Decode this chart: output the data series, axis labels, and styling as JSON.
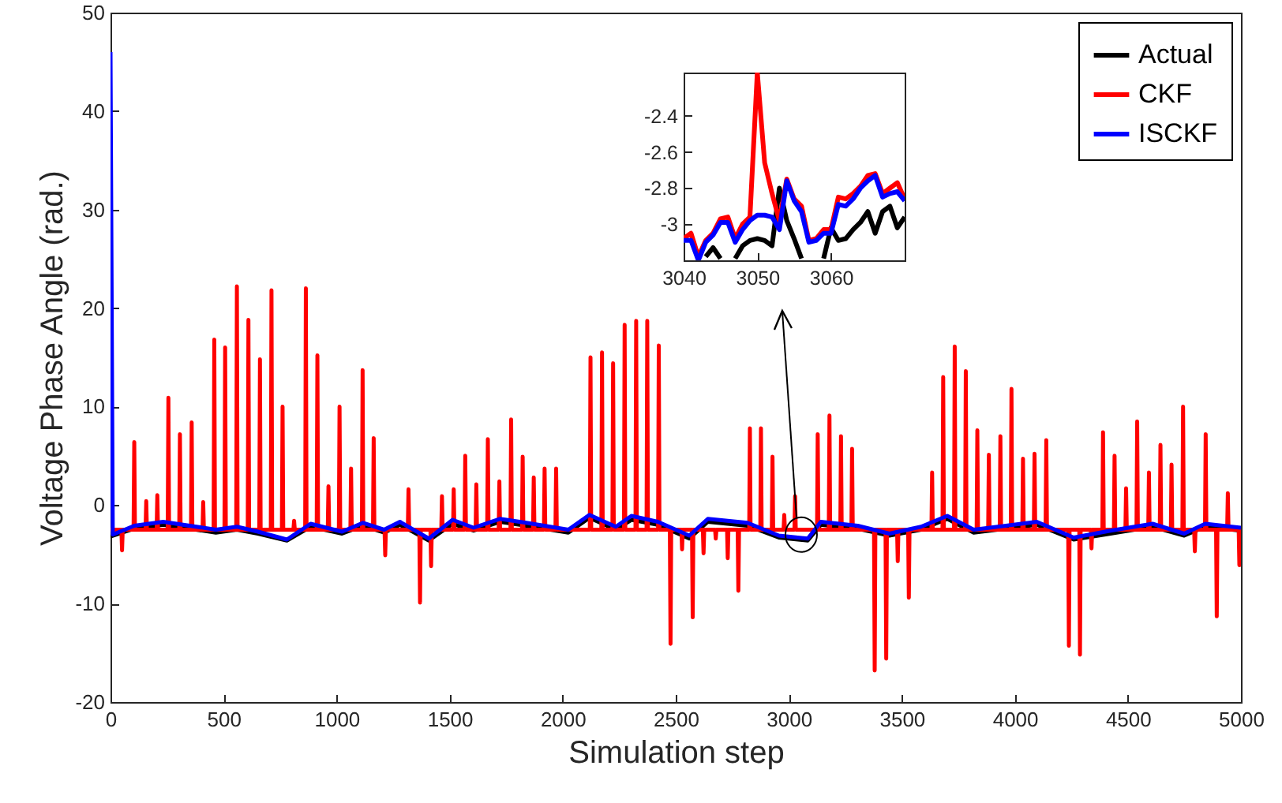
{
  "chart_data": [
    {
      "type": "line",
      "xlabel": "Simulation step",
      "ylabel": "Voltage Phase Angle (rad.)",
      "xlim": [
        0,
        5000
      ],
      "xticks": [
        0,
        500,
        1000,
        1500,
        2000,
        2500,
        3000,
        3500,
        4000,
        4500,
        5000
      ],
      "ylim": [
        -20,
        50
      ],
      "yticks": [
        -20,
        -10,
        0,
        10,
        20,
        30,
        40,
        50
      ],
      "grid": false,
      "legend": "top right",
      "series": [
        {
          "name": "Actual",
          "color": "#000000",
          "x": [
            0,
            105,
            233,
            466,
            559,
            652,
            780,
            885,
            1024,
            1117,
            1210,
            1280,
            1408,
            1513,
            1606,
            1722,
            1839,
            2025,
            2118,
            2235,
            2304,
            2421,
            2560,
            2642,
            2817,
            2956,
            3084,
            3142,
            3305,
            3445,
            3585,
            3701,
            3818,
            4097,
            4260,
            4423,
            4609,
            4749,
            4842,
            5000
          ],
          "values": [
            -3.2,
            -2.4,
            -2.0,
            -2.8,
            -2.5,
            -2.9,
            -3.6,
            -2.2,
            -2.9,
            -2.1,
            -2.8,
            -2.0,
            -3.6,
            -1.9,
            -2.6,
            -1.7,
            -2.1,
            -2.8,
            -1.3,
            -2.5,
            -1.5,
            -2.0,
            -3.4,
            -1.7,
            -2.1,
            -3.3,
            -3.6,
            -2.0,
            -2.4,
            -3.1,
            -2.5,
            -1.4,
            -2.8,
            -2.0,
            -3.5,
            -2.9,
            -2.2,
            -3.1,
            -2.2,
            -2.6
          ]
        },
        {
          "name": "CKF",
          "color": "#ff0000",
          "x": [
            0,
            48,
            51,
            54,
            102,
            105,
            108,
            155,
            158,
            161,
            204,
            207,
            210,
            253,
            256,
            259,
            304,
            307,
            310,
            356,
            359,
            362,
            407,
            410,
            413,
            456,
            459,
            462,
            504,
            507,
            510,
            556,
            559,
            562,
            607,
            610,
            613,
            658,
            661,
            664,
            709,
            712,
            715,
            758,
            761,
            764,
            809,
            812,
            815,
            861,
            864,
            867,
            912,
            915,
            918,
            961,
            964,
            967,
            1010,
            1013,
            1016,
            1061,
            1064,
            1067,
            1112,
            1115,
            1118,
            1161,
            1164,
            1167,
            1212,
            1215,
            1218,
            1315,
            1318,
            1321,
            1366,
            1369,
            1372,
            1415,
            1418,
            1421,
            1463,
            1466,
            1469,
            1515,
            1518,
            1521,
            1566,
            1569,
            1572,
            1615,
            1618,
            1621,
            1666,
            1669,
            1672,
            1717,
            1720,
            1723,
            1769,
            1772,
            1775,
            1820,
            1823,
            1826,
            1869,
            1872,
            1875,
            1917,
            1920,
            1923,
            1968,
            1971,
            1974,
            2120,
            2123,
            2126,
            2171,
            2174,
            2177,
            2220,
            2223,
            2226,
            2271,
            2274,
            2277,
            2322,
            2325,
            2328,
            2371,
            2374,
            2377,
            2422,
            2425,
            2428,
            2474,
            2477,
            2480,
            2525,
            2528,
            2531,
            2572,
            2575,
            2578,
            2620,
            2623,
            2626,
            2674,
            2677,
            2680,
            2727,
            2730,
            2733,
            2774,
            2777,
            2780,
            2825,
            2828,
            2831,
            2874,
            2877,
            2880,
            2925,
            2928,
            2931,
            2977,
            2980,
            2983,
            3025,
            3028,
            3031,
            3125,
            3128,
            3131,
            3177,
            3180,
            3183,
            3228,
            3231,
            3234,
            3277,
            3280,
            3283,
            3377,
            3380,
            3383,
            3428,
            3431,
            3434,
            3479,
            3482,
            3485,
            3528,
            3531,
            3534,
            3631,
            3634,
            3637,
            3680,
            3683,
            3686,
            3731,
            3734,
            3737,
            3780,
            3783,
            3786,
            3831,
            3834,
            3837,
            3882,
            3885,
            3888,
            3933,
            3936,
            3939,
            3982,
            3985,
            3988,
            4033,
            4036,
            4039,
            4084,
            4087,
            4090,
            4136,
            4139,
            4142,
            4236,
            4239,
            4242,
            4285,
            4288,
            4291,
            4336,
            4339,
            4342,
            4387,
            4390,
            4393,
            4438,
            4441,
            4444,
            4489,
            4492,
            4495,
            4538,
            4541,
            4544,
            4590,
            4593,
            4596,
            4641,
            4644,
            4647,
            4690,
            4693,
            4696,
            4741,
            4744,
            4747,
            4793,
            4796,
            4799,
            4841,
            4844,
            4847,
            4890,
            4893,
            4896,
            4939,
            4942,
            4945,
            4990,
            4993,
            4996,
            5000
          ],
          "values": [
            -2.5,
            -2.5,
            -4.6,
            -2.5,
            -2.5,
            6.4,
            -2.5,
            -2.5,
            0.4,
            -2.5,
            -2.5,
            1.0,
            -2.5,
            -2.5,
            10.9,
            -2.5,
            -2.5,
            7.2,
            -2.5,
            -2.5,
            8.4,
            -2.5,
            -2.5,
            0.3,
            -2.5,
            -2.5,
            16.8,
            -2.5,
            -2.5,
            16.0,
            -2.5,
            -2.5,
            22.2,
            -2.5,
            -2.5,
            18.8,
            -2.5,
            -2.5,
            14.8,
            -2.5,
            -2.5,
            21.8,
            -2.5,
            -2.5,
            10.0,
            -2.5,
            -2.5,
            -1.6,
            -2.5,
            -2.5,
            22.0,
            -2.5,
            -2.5,
            15.2,
            -2.5,
            -2.5,
            1.9,
            -2.5,
            -2.5,
            10.0,
            -2.5,
            -2.5,
            3.7,
            -2.5,
            -2.5,
            13.7,
            -2.5,
            -2.5,
            6.8,
            -2.5,
            -2.5,
            -5.1,
            -2.5,
            -2.5,
            1.6,
            -2.5,
            -2.5,
            -9.9,
            -2.5,
            -2.5,
            -6.2,
            -2.5,
            -2.5,
            0.9,
            -2.5,
            -2.5,
            1.6,
            -2.5,
            -2.5,
            5.0,
            -2.5,
            -2.5,
            2.1,
            -2.5,
            -2.5,
            6.7,
            -2.5,
            -2.5,
            2.4,
            -2.5,
            -2.5,
            8.7,
            -2.5,
            -2.5,
            4.9,
            -2.5,
            -2.5,
            2.8,
            -2.5,
            -2.5,
            3.7,
            -2.5,
            -2.5,
            3.7,
            -2.5,
            -2.5,
            15.0,
            -2.5,
            -2.5,
            15.5,
            -2.5,
            -2.5,
            14.4,
            -2.5,
            -2.5,
            18.3,
            -2.5,
            -2.5,
            18.7,
            -2.5,
            -2.5,
            18.7,
            -2.5,
            -2.5,
            16.2,
            -2.5,
            -2.5,
            -14.1,
            -2.5,
            -2.5,
            -4.5,
            -2.5,
            -2.5,
            -11.4,
            -2.5,
            -2.5,
            -4.9,
            -2.5,
            -2.5,
            -3.4,
            -2.5,
            -2.5,
            -5.4,
            -2.5,
            -2.5,
            -8.7,
            -2.5,
            -2.5,
            7.8,
            -2.5,
            -2.5,
            7.8,
            -2.5,
            -2.5,
            4.9,
            -2.5,
            -2.5,
            -1.0,
            -2.5,
            -2.5,
            0.9,
            -2.5,
            -2.5,
            7.2,
            -2.5,
            -2.5,
            9.1,
            -2.5,
            -2.5,
            7.0,
            -2.5,
            -2.5,
            5.7,
            -2.5,
            -2.5,
            -16.8,
            -2.5,
            -2.5,
            -15.6,
            -2.5,
            -2.5,
            -5.7,
            -2.5,
            -2.5,
            -9.4,
            -2.5,
            -2.5,
            3.3,
            -2.5,
            -2.5,
            13.0,
            -2.5,
            -2.5,
            16.1,
            -2.5,
            -2.5,
            13.6,
            -2.5,
            -2.5,
            7.6,
            -2.5,
            -2.5,
            5.1,
            -2.5,
            -2.5,
            7.0,
            -2.5,
            -2.5,
            11.8,
            -2.5,
            -2.5,
            4.7,
            -2.5,
            -2.5,
            5.2,
            -2.5,
            -2.5,
            6.6,
            -2.5,
            -2.5,
            -14.3,
            -2.5,
            -2.5,
            -15.2,
            -2.5,
            -2.5,
            -4.4,
            -2.5,
            -2.5,
            7.4,
            -2.5,
            -2.5,
            5.0,
            -2.5,
            -2.5,
            1.7,
            -2.5,
            -2.5,
            8.5,
            -2.5,
            -2.5,
            3.3,
            -2.5,
            -2.5,
            6.1,
            -2.5,
            -2.5,
            4.1,
            -2.5,
            -2.5,
            10.0,
            -2.5,
            -2.5,
            -4.7,
            -2.5,
            -2.5,
            7.2,
            -2.5,
            -2.5,
            -11.3,
            -2.5,
            -2.5,
            1.2,
            -2.5,
            -2.5,
            -6.1,
            -2.5,
            -2.5
          ]
        },
        {
          "name": "ISCKF",
          "color": "#0000ff",
          "x": [
            0,
            10,
            105,
            233,
            466,
            559,
            652,
            780,
            885,
            1024,
            1117,
            1210,
            1280,
            1408,
            1513,
            1606,
            1722,
            1839,
            2025,
            2118,
            2235,
            2304,
            2421,
            2560,
            2642,
            2817,
            2956,
            3084,
            3142,
            3305,
            3445,
            3585,
            3701,
            3818,
            4097,
            4260,
            4423,
            4609,
            4749,
            4842,
            5000
          ],
          "values": [
            46,
            -3.0,
            -2.1,
            -1.7,
            -2.5,
            -2.2,
            -2.7,
            -3.5,
            -1.9,
            -2.7,
            -1.8,
            -2.5,
            -1.7,
            -3.4,
            -1.5,
            -2.3,
            -1.4,
            -1.8,
            -2.5,
            -1.0,
            -2.2,
            -1.1,
            -1.7,
            -3.1,
            -1.4,
            -1.8,
            -3.1,
            -3.4,
            -1.7,
            -2.1,
            -2.9,
            -2.2,
            -1.1,
            -2.5,
            -1.7,
            -3.3,
            -2.6,
            -1.9,
            -2.9,
            -1.9,
            -2.3
          ]
        }
      ]
    },
    {
      "type": "line",
      "xlim": [
        3040,
        3070
      ],
      "xticks": [
        3040,
        3050,
        3060
      ],
      "ylim": [
        -3.2,
        -2.16
      ],
      "yticks": [
        -3,
        -2.8,
        -2.6,
        -2.4
      ],
      "grid": false,
      "x": [
        3040,
        3041,
        3042,
        3043,
        3044,
        3045,
        3046,
        3047,
        3048,
        3049,
        3050,
        3051,
        3052,
        3053,
        3054,
        3055,
        3056,
        3057,
        3058,
        3059,
        3060,
        3061,
        3062,
        3063,
        3064,
        3065,
        3066,
        3067,
        3068,
        3069,
        3070
      ],
      "series": [
        {
          "color": "#000000",
          "values": [
            null,
            null,
            null,
            -3.18,
            -3.13,
            -3.19,
            null,
            -3.19,
            -3.12,
            -3.09,
            -3.08,
            -3.09,
            -3.12,
            -2.8,
            -2.98,
            -3.08,
            -3.19,
            null,
            null,
            -3.19,
            -3.02,
            -3.09,
            -3.08,
            -3.03,
            -2.99,
            -2.93,
            -3.05,
            -2.93,
            -2.9,
            -3.02,
            -2.96
          ]
        },
        {
          "color": "#ff0000",
          "values": [
            -3.08,
            -3.05,
            -3.18,
            -3.09,
            -3.05,
            -2.97,
            -2.96,
            -3.08,
            -3.0,
            -2.96,
            -2.16,
            -2.66,
            -2.83,
            -2.98,
            -2.75,
            -2.86,
            -2.9,
            -3.09,
            -3.08,
            -3.03,
            -3.03,
            -2.85,
            -2.86,
            -2.83,
            -2.79,
            -2.73,
            -2.72,
            -2.83,
            -2.8,
            -2.77,
            -2.86
          ]
        },
        {
          "color": "#0000ff",
          "values": [
            -3.09,
            -3.09,
            -3.2,
            -3.1,
            -3.06,
            -2.99,
            -2.99,
            -3.1,
            -3.03,
            -2.98,
            -2.95,
            -2.95,
            -2.96,
            -3.03,
            -2.76,
            -2.87,
            -2.93,
            -3.1,
            -3.09,
            -3.05,
            -3.05,
            -2.89,
            -2.9,
            -2.86,
            -2.8,
            -2.76,
            -2.73,
            -2.85,
            -2.83,
            -2.82,
            -2.87
          ]
        }
      ]
    }
  ]
}
